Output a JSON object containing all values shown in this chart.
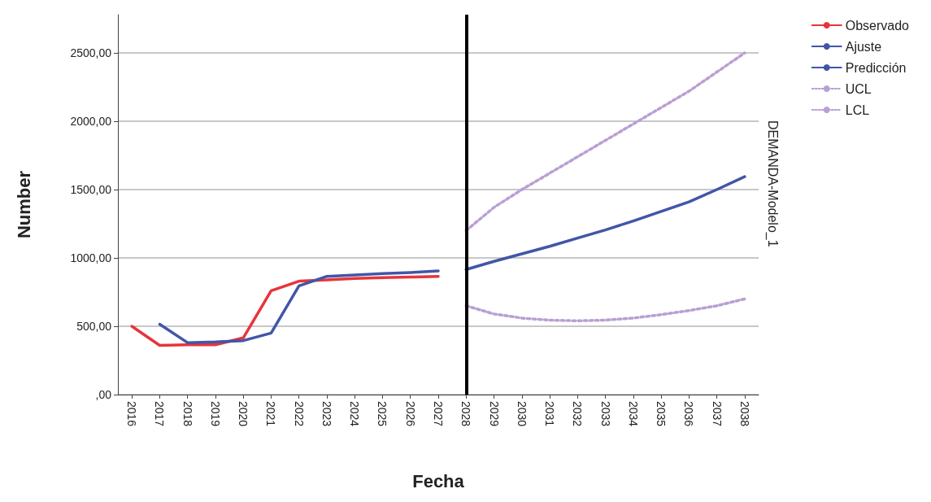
{
  "chart_data": {
    "type": "line",
    "xlabel": "Fecha",
    "ylabel": "Number",
    "legend_title": "DEMANDA-Modelo_1",
    "categories": [
      "2016",
      "2017",
      "2018",
      "2019",
      "2020",
      "2021",
      "2022",
      "2023",
      "2024",
      "2025",
      "2026",
      "2027",
      "2028",
      "2029",
      "2030",
      "2031",
      "2032",
      "2033",
      "2034",
      "2035",
      "2036",
      "2037",
      "2038"
    ],
    "series": [
      {
        "name": "Observado",
        "color": "#e8343c",
        "line_style": "solid",
        "values": [
          500,
          360,
          365,
          365,
          415,
          760,
          830,
          840,
          850,
          855,
          860,
          865,
          null,
          null,
          null,
          null,
          null,
          null,
          null,
          null,
          null,
          null,
          null
        ]
      },
      {
        "name": "Ajuste",
        "color": "#4156a8",
        "line_style": "solid",
        "values": [
          null,
          515,
          380,
          385,
          395,
          450,
          795,
          865,
          875,
          885,
          893,
          905,
          null,
          null,
          null,
          null,
          null,
          null,
          null,
          null,
          null,
          null,
          null
        ]
      },
      {
        "name": "Predicción",
        "color": "#4156a8",
        "line_style": "solid",
        "values": [
          null,
          null,
          null,
          null,
          null,
          null,
          null,
          null,
          null,
          null,
          null,
          null,
          915,
          975,
          1030,
          1085,
          1145,
          1205,
          1270,
          1340,
          1410,
          1500,
          1595
        ]
      },
      {
        "name": "UCL",
        "color": "#b89fd4",
        "line_style": "dotted",
        "values": [
          null,
          null,
          null,
          null,
          null,
          null,
          null,
          null,
          null,
          null,
          null,
          null,
          1200,
          1370,
          1500,
          1620,
          1740,
          1860,
          1980,
          2100,
          2220,
          2360,
          2500
        ]
      },
      {
        "name": "LCL",
        "color": "#b89fd4",
        "line_style": "dotted",
        "values": [
          null,
          null,
          null,
          null,
          null,
          null,
          null,
          null,
          null,
          null,
          null,
          null,
          650,
          590,
          560,
          545,
          540,
          545,
          560,
          585,
          615,
          650,
          700
        ]
      }
    ],
    "ylim": [
      0,
      2780
    ],
    "yticks": [
      {
        "value": 0,
        "label": ",00"
      },
      {
        "value": 500,
        "label": "500,00"
      },
      {
        "value": 1000,
        "label": "1000,00"
      },
      {
        "value": 1500,
        "label": "1500,00"
      },
      {
        "value": 2000,
        "label": "2000,00"
      },
      {
        "value": 2500,
        "label": "2500,00"
      }
    ],
    "ref_lines": [
      {
        "axis": "x",
        "value": "2028",
        "color": "#000000",
        "line_style": "solid"
      }
    ],
    "grid": "y",
    "legend": "top right",
    "marker": "none"
  }
}
